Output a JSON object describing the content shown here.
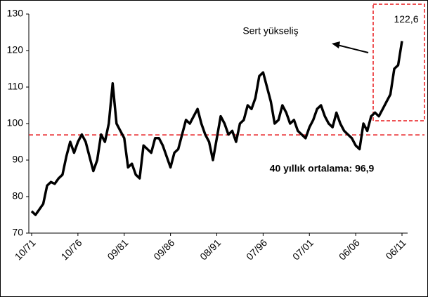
{
  "chart_data": {
    "type": "line",
    "categories": [
      "10/71",
      null,
      null,
      null,
      null,
      null,
      null,
      null,
      null,
      null,
      null,
      null,
      "10/76",
      null,
      null,
      null,
      null,
      null,
      null,
      null,
      null,
      null,
      null,
      null,
      "09/81",
      null,
      null,
      null,
      null,
      null,
      null,
      null,
      null,
      null,
      null,
      null,
      "09/86",
      null,
      null,
      null,
      null,
      null,
      null,
      null,
      null,
      null,
      null,
      null,
      "08/91",
      null,
      null,
      null,
      null,
      null,
      null,
      null,
      null,
      null,
      null,
      null,
      "07/96",
      null,
      null,
      null,
      null,
      null,
      null,
      null,
      null,
      null,
      null,
      null,
      "07/01",
      null,
      null,
      null,
      null,
      null,
      null,
      null,
      null,
      null,
      null,
      null,
      "06/06",
      null,
      null,
      null,
      null,
      null,
      null,
      null,
      null,
      null,
      null,
      null,
      "06/11"
    ],
    "values": [
      76,
      75,
      76.5,
      78,
      83,
      84,
      83.5,
      85,
      86,
      91,
      95,
      92,
      95,
      97,
      95,
      91,
      87,
      90,
      97,
      95,
      100,
      111,
      100,
      98,
      96,
      88,
      89,
      86,
      85,
      94,
      93,
      92,
      96,
      96,
      94,
      91,
      88,
      92,
      93,
      97,
      101,
      100,
      102,
      104,
      100,
      97,
      95,
      90,
      96,
      102,
      100,
      97,
      98,
      95,
      100,
      101,
      105,
      104,
      107,
      113,
      114,
      110,
      106,
      100,
      101,
      105,
      103,
      100,
      101,
      98,
      97,
      96,
      99,
      101,
      104,
      105,
      102,
      100,
      99,
      103,
      100,
      98,
      97,
      96,
      94,
      93,
      100,
      98,
      102,
      103,
      102,
      104,
      106,
      108,
      115,
      116,
      122.6
    ],
    "value_labels": [
      null,
      null,
      null,
      null,
      null,
      null,
      null,
      null,
      null,
      null,
      null,
      null,
      null,
      null,
      null,
      null,
      null,
      null,
      null,
      null,
      null,
      null,
      null,
      null,
      null,
      null,
      null,
      null,
      null,
      null,
      null,
      null,
      null,
      null,
      null,
      null,
      null,
      null,
      null,
      null,
      null,
      null,
      null,
      null,
      null,
      null,
      null,
      null,
      null,
      null,
      null,
      null,
      null,
      null,
      null,
      null,
      null,
      null,
      null,
      null,
      null,
      null,
      null,
      null,
      null,
      null,
      null,
      null,
      null,
      null,
      null,
      null,
      null,
      null,
      null,
      null,
      null,
      null,
      null,
      null,
      null,
      null,
      null,
      null,
      null,
      null,
      null,
      null,
      null,
      null,
      null,
      null,
      null,
      null,
      null,
      null,
      "122,6"
    ],
    "color": "#000000",
    "average": 96.9,
    "average_color": "#e8191c",
    "annotations": [
      "Sert yükseliş",
      "40 yıllık ortalama: 96,9"
    ],
    "ylim": [
      70,
      130
    ],
    "yticks": [
      70,
      80,
      90,
      100,
      110,
      120,
      130
    ]
  }
}
